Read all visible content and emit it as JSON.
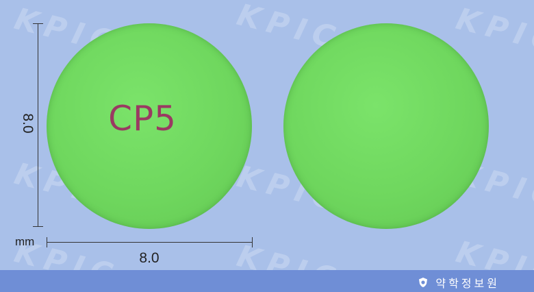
{
  "watermark": "KPIC",
  "pill": {
    "front_imprint": "CP5",
    "color": "#6fd75e",
    "imprint_color": "#9a3a62"
  },
  "dimensions": {
    "unit": "mm",
    "width": "8.0",
    "height": "8.0"
  },
  "footer": {
    "brand": "약학정보원",
    "logo_icon": "shield-logo-icon",
    "background": "#6f8ed6"
  }
}
